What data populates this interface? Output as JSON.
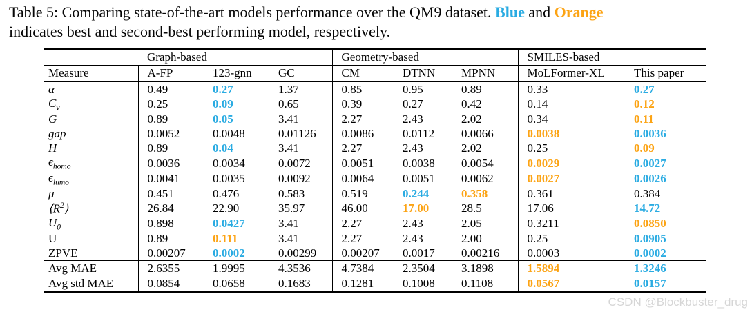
{
  "caption": {
    "line1_prefix": "Table 5: Comparing state-of-the-art models performance over the QM9 dataset. ",
    "blue_word": "Blue",
    "line1_mid": " and ",
    "orange_word": "Orange",
    "line2": "indicates best and second-best performing model, respectively."
  },
  "colors": {
    "best": "#29abe2",
    "second": "#fca313"
  },
  "table": {
    "groups": [
      {
        "label": "Graph-based",
        "span": 3
      },
      {
        "label": "Geometry-based",
        "span": 3
      },
      {
        "label": "SMILES-based",
        "span": 2
      }
    ],
    "measure_header": "Measure",
    "columns": [
      "A-FP",
      "123-gnn",
      "GC",
      "CM",
      "DTNN",
      "MPNN",
      "MoLFormer-XL",
      "This paper"
    ],
    "rows": [
      {
        "m": "α",
        "it": 1,
        "cells": [
          [
            "0.49",
            ""
          ],
          [
            "0.27",
            "b"
          ],
          [
            "1.37",
            ""
          ],
          [
            "0.85",
            ""
          ],
          [
            "0.95",
            ""
          ],
          [
            "0.89",
            ""
          ],
          [
            "0.33",
            ""
          ],
          [
            "0.27",
            "b"
          ]
        ]
      },
      {
        "m": "C_{v}",
        "it": 1,
        "cells": [
          [
            "0.25",
            ""
          ],
          [
            "0.09",
            "b"
          ],
          [
            "0.65",
            ""
          ],
          [
            "0.39",
            ""
          ],
          [
            "0.27",
            ""
          ],
          [
            "0.42",
            ""
          ],
          [
            "0.14",
            ""
          ],
          [
            "0.12",
            "o"
          ]
        ]
      },
      {
        "m": "G",
        "it": 1,
        "cells": [
          [
            "0.89",
            ""
          ],
          [
            "0.05",
            "b"
          ],
          [
            "3.41",
            ""
          ],
          [
            "2.27",
            ""
          ],
          [
            "2.43",
            ""
          ],
          [
            "2.02",
            ""
          ],
          [
            "0.34",
            ""
          ],
          [
            "0.11",
            "o"
          ]
        ]
      },
      {
        "m": "gap",
        "it": 1,
        "cells": [
          [
            "0.0052",
            ""
          ],
          [
            "0.0048",
            ""
          ],
          [
            "0.01126",
            ""
          ],
          [
            "0.0086",
            ""
          ],
          [
            "0.0112",
            ""
          ],
          [
            "0.0066",
            ""
          ],
          [
            "0.0038",
            "o"
          ],
          [
            "0.0036",
            "b"
          ]
        ]
      },
      {
        "m": "H",
        "it": 1,
        "cells": [
          [
            "0.89",
            ""
          ],
          [
            "0.04",
            "b"
          ],
          [
            "3.41",
            ""
          ],
          [
            "2.27",
            ""
          ],
          [
            "2.43",
            ""
          ],
          [
            "2.02",
            ""
          ],
          [
            "0.25",
            ""
          ],
          [
            "0.09",
            "o"
          ]
        ]
      },
      {
        "m": "ϵ_{homo}",
        "it": 1,
        "cells": [
          [
            "0.0036",
            ""
          ],
          [
            "0.0034",
            ""
          ],
          [
            "0.0072",
            ""
          ],
          [
            "0.0051",
            ""
          ],
          [
            "0.0038",
            ""
          ],
          [
            "0.0054",
            ""
          ],
          [
            "0.0029",
            "o"
          ],
          [
            "0.0027",
            "b"
          ]
        ]
      },
      {
        "m": "ϵ_{lumo}",
        "it": 1,
        "cells": [
          [
            "0.0041",
            ""
          ],
          [
            "0.0035",
            ""
          ],
          [
            "0.0092",
            ""
          ],
          [
            "0.0064",
            ""
          ],
          [
            "0.0051",
            ""
          ],
          [
            "0.0062",
            ""
          ],
          [
            "0.0027",
            "o"
          ],
          [
            "0.0026",
            "b"
          ]
        ]
      },
      {
        "m": "μ",
        "it": 1,
        "cells": [
          [
            "0.451",
            ""
          ],
          [
            "0.476",
            ""
          ],
          [
            "0.583",
            ""
          ],
          [
            "0.519",
            ""
          ],
          [
            "0.244",
            "b"
          ],
          [
            "0.358",
            "o"
          ],
          [
            "0.361",
            ""
          ],
          [
            "0.384",
            ""
          ]
        ]
      },
      {
        "m": "⟨R^{2}⟩",
        "it": 1,
        "cells": [
          [
            "26.84",
            ""
          ],
          [
            "22.90",
            ""
          ],
          [
            "35.97",
            ""
          ],
          [
            "46.00",
            ""
          ],
          [
            "17.00",
            "o"
          ],
          [
            "28.5",
            ""
          ],
          [
            "17.06",
            ""
          ],
          [
            "14.72",
            "b"
          ]
        ]
      },
      {
        "m": "U_{0}",
        "it": 1,
        "cells": [
          [
            "0.898",
            ""
          ],
          [
            "0.0427",
            "b"
          ],
          [
            "3.41",
            ""
          ],
          [
            "2.27",
            ""
          ],
          [
            "2.43",
            ""
          ],
          [
            "2.05",
            ""
          ],
          [
            "0.3211",
            ""
          ],
          [
            "0.0850",
            "o"
          ]
        ]
      },
      {
        "m": "U",
        "it": 0,
        "cells": [
          [
            "0.89",
            ""
          ],
          [
            "0.111",
            "o"
          ],
          [
            "3.41",
            ""
          ],
          [
            "2.27",
            ""
          ],
          [
            "2.43",
            ""
          ],
          [
            "2.00",
            ""
          ],
          [
            "0.25",
            ""
          ],
          [
            "0.0905",
            "b"
          ]
        ]
      },
      {
        "m": "ZPVE",
        "it": 0,
        "cells": [
          [
            "0.00207",
            ""
          ],
          [
            "0.0002",
            "b"
          ],
          [
            "0.00299",
            ""
          ],
          [
            "0.00207",
            ""
          ],
          [
            "0.0017",
            ""
          ],
          [
            "0.00216",
            ""
          ],
          [
            "0.0003",
            ""
          ],
          [
            "0.0002",
            "b"
          ]
        ]
      }
    ],
    "summary_rows": [
      {
        "m": "Avg MAE",
        "cells": [
          [
            "2.6355",
            ""
          ],
          [
            "1.9995",
            ""
          ],
          [
            "4.3536",
            ""
          ],
          [
            "4.7384",
            ""
          ],
          [
            "2.3504",
            ""
          ],
          [
            "3.1898",
            ""
          ],
          [
            "1.5894",
            "o"
          ],
          [
            "1.3246",
            "b"
          ]
        ]
      },
      {
        "m": "Avg std MAE",
        "cells": [
          [
            "0.0854",
            ""
          ],
          [
            "0.0658",
            ""
          ],
          [
            "0.1683",
            ""
          ],
          [
            "0.1281",
            ""
          ],
          [
            "0.1008",
            ""
          ],
          [
            "0.1108",
            ""
          ],
          [
            "0.0567",
            "o"
          ],
          [
            "0.0157",
            "b"
          ]
        ]
      }
    ]
  },
  "watermark": "CSDN @Blockbuster_drug"
}
